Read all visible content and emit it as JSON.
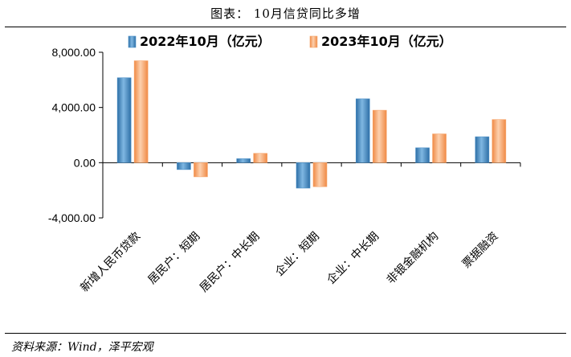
{
  "header": {
    "title": "图表：  10月信贷同比多增"
  },
  "footer": {
    "source": "资料来源：Wind，泽平宏观"
  },
  "chart_data": {
    "type": "bar",
    "title": "",
    "xlabel": "",
    "ylabel": "",
    "ylim": [
      -4000,
      8000
    ],
    "yticks": [
      -4000,
      0,
      4000,
      8000
    ],
    "ytick_labels": [
      "-4,000.00",
      "0.00",
      "4,000.00",
      "8,000.00"
    ],
    "legend_position": "top",
    "grid": false,
    "categories": [
      "新增人民币贷款",
      "居民户：短期",
      "居民户：中长期",
      "企业：短期",
      "企业：中长期",
      "非银金融机构",
      "票据融资"
    ],
    "series": [
      {
        "name": "2022年10月（亿元）",
        "color": "#4A8FC7",
        "values": [
          6152,
          -497,
          289,
          -1842,
          4627,
          1078,
          1879
        ]
      },
      {
        "name": "2023年10月（亿元）",
        "color": "#F6A46A",
        "values": [
          7384,
          -1023,
          676,
          -1738,
          3799,
          2085,
          3126
        ]
      }
    ]
  }
}
